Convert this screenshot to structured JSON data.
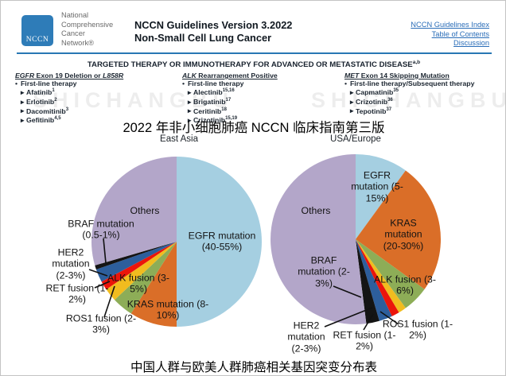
{
  "header": {
    "logo_text": "NCCN",
    "org_lines": [
      "National",
      "Comprehensive",
      "Cancer",
      "Network®"
    ],
    "title_line1": "NCCN Guidelines Version 3.2022",
    "title_line2": "Non-Small Cell Lung Cancer",
    "links": [
      "NCCN Guidelines Index",
      "Table of Contents",
      "Discussion"
    ]
  },
  "banner": {
    "text": "TARGETED THERAPY OR IMMUNOTHERAPY FOR ADVANCED OR METASTATIC DISEASE",
    "sup": "a,b"
  },
  "watermark": "SHICHANGBU",
  "markers": {
    "bullet": "•",
    "item": "▸"
  },
  "therapy_columns": [
    {
      "gene": "EGFR",
      "header_rest": " Exon 19 Deletion or ",
      "header_tail": "L858R",
      "bullet": "First-line therapy",
      "drugs": [
        {
          "name": "Afatinib",
          "sup": "1"
        },
        {
          "name": "Erlotinib",
          "sup": "2"
        },
        {
          "name": "Dacomitinib",
          "sup": "3"
        },
        {
          "name": "Gefitinib",
          "sup": "4,5"
        }
      ]
    },
    {
      "gene": "ALK",
      "header_rest": " Rearrangement Positive",
      "header_tail": "",
      "bullet": "First-line therapy",
      "drugs": [
        {
          "name": "Alectinib",
          "sup": "15,16"
        },
        {
          "name": "Brigatinib",
          "sup": "17"
        },
        {
          "name": "Ceritinib",
          "sup": "18"
        },
        {
          "name": "Crizotinib",
          "sup": "15,19"
        }
      ]
    },
    {
      "gene": "MET",
      "header_rest": " Exon 14 Skipping Mutation",
      "header_tail": "",
      "bullet": "First-line therapy/Subsequent therapy",
      "drugs": [
        {
          "name": "Capmatinib",
          "sup": "35"
        },
        {
          "name": "Crizotinib",
          "sup": "36"
        },
        {
          "name": "Tepotinib",
          "sup": "37"
        }
      ]
    }
  ],
  "annotations": {
    "cn_title": "2022 年非小细胞肺癌 NCCN 临床指南第三版",
    "cn_caption": "中国人群与欧美人群肺癌相关基因突变分布表"
  },
  "chart_data": [
    {
      "type": "pie",
      "title": "East Asia",
      "legend_position": "labels-on-chart",
      "slices": [
        {
          "label": "EGFR mutation",
          "range": "(40-55%)",
          "value": 50,
          "color": "#a5cfe1"
        },
        {
          "label": "KRAS mutation",
          "range": "(8-10%)",
          "value": 9,
          "color": "#da6e28"
        },
        {
          "label": "ALK fusion",
          "range": "(3-5%)",
          "value": 4,
          "color": "#8dad57"
        },
        {
          "label": "ROS1 fusion",
          "range": "(2-3%)",
          "value": 2.5,
          "color": "#f1bc1f"
        },
        {
          "label": "RET fusion",
          "range": "(1-2%)",
          "value": 1.7,
          "color": "#eb150b"
        },
        {
          "label": "HER2 mutation",
          "range": "(2-3%)",
          "value": 2.5,
          "color": "#2d5e9c"
        },
        {
          "label": "BRAF mutation",
          "range": "(0.5-1%)",
          "value": 0.8,
          "color": "#141414"
        },
        {
          "label": "Others",
          "range": "",
          "value": 29.5,
          "color": "#b3a6c9"
        }
      ]
    },
    {
      "type": "pie",
      "title": "USA/Europe",
      "legend_position": "labels-on-chart",
      "slices": [
        {
          "label": "EGFR mutation",
          "range": "(5-15%)",
          "value": 10,
          "color": "#a5cfe1"
        },
        {
          "label": "KRAS mutation",
          "range": "(20-30%)",
          "value": 25,
          "color": "#da6e28"
        },
        {
          "label": "ALK fusion",
          "range": "(3-6%)",
          "value": 5,
          "color": "#8dad57"
        },
        {
          "label": "ROS1 fusion",
          "range": "(1-2%)",
          "value": 1.5,
          "color": "#f1bc1f"
        },
        {
          "label": "RET fusion",
          "range": "(1-2%)",
          "value": 1.5,
          "color": "#eb150b"
        },
        {
          "label": "HER2 mutation",
          "range": "(2-3%)",
          "value": 2.5,
          "color": "#2d5e9c"
        },
        {
          "label": "BRAF mutation",
          "range": "(2-3%)",
          "value": 2.5,
          "color": "#141414"
        },
        {
          "label": "Others",
          "range": "",
          "value": 52,
          "color": "#b3a6c9"
        }
      ]
    }
  ]
}
